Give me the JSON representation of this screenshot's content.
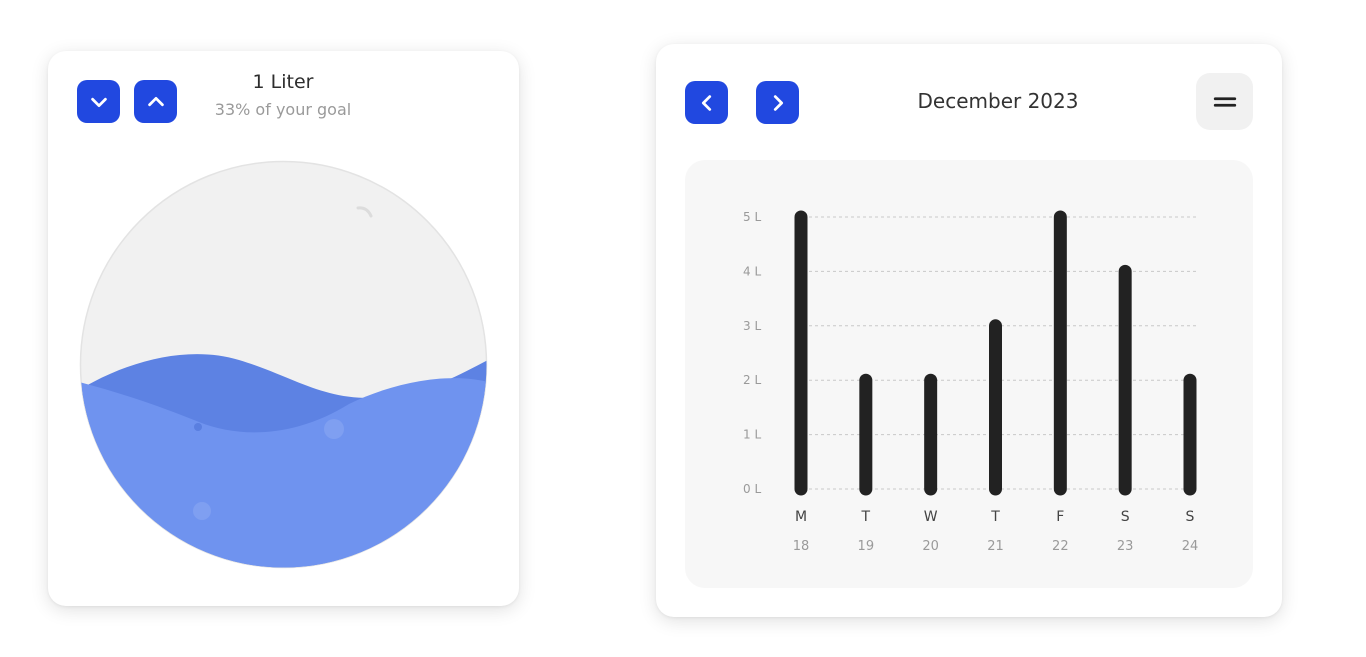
{
  "water": {
    "decrease_icon": "chevron-down-icon",
    "increase_icon": "chevron-up-icon",
    "amount_label": "1 Liter",
    "goal_label": "33% of your goal",
    "fill_fraction": 0.33,
    "colors": {
      "button": "#2148e0",
      "water_front": "#6f93ef",
      "water_back": "#5d82e3",
      "glass": "#f1f1f1"
    }
  },
  "stats": {
    "prev_icon": "chevron-left-icon",
    "next_icon": "chevron-right-icon",
    "month_label": "December 2023",
    "menu_icon": "menu-icon"
  },
  "chart_data": {
    "type": "bar",
    "categories": [
      "M",
      "T",
      "W",
      "T",
      "F",
      "S",
      "S"
    ],
    "dates": [
      "18",
      "19",
      "20",
      "21",
      "22",
      "23",
      "24"
    ],
    "values": [
      5,
      2,
      2,
      3,
      5,
      4,
      2
    ],
    "y_ticks": [
      "0 L",
      "1 L",
      "2 L",
      "3 L",
      "4 L",
      "5 L"
    ],
    "ylim": [
      0,
      5
    ],
    "grid": true,
    "bar_color": "#222222"
  }
}
